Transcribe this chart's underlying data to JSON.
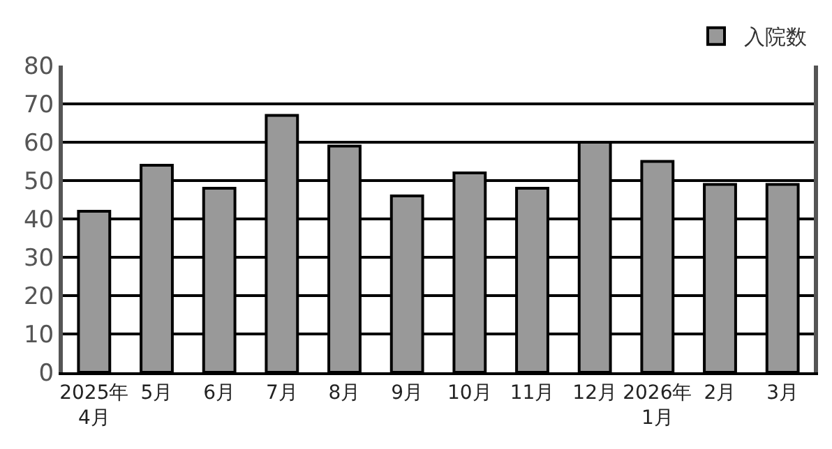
{
  "chart_data": {
    "type": "bar",
    "categories": [
      "2025年\n4月",
      "5月",
      "6月",
      "7月",
      "8月",
      "9月",
      "10月",
      "11月",
      "12月",
      "2026年\n1月",
      "2月",
      "3月"
    ],
    "series": [
      {
        "name": "入院数",
        "color": "#999999",
        "values": [
          42,
          54,
          48,
          67,
          59,
          46,
          52,
          48,
          60,
          55,
          49,
          49
        ]
      }
    ],
    "ylim": [
      0,
      80
    ],
    "yticks": [
      0,
      10,
      20,
      30,
      40,
      50,
      60,
      70,
      80
    ],
    "grid": "y",
    "legend": "top right"
  }
}
